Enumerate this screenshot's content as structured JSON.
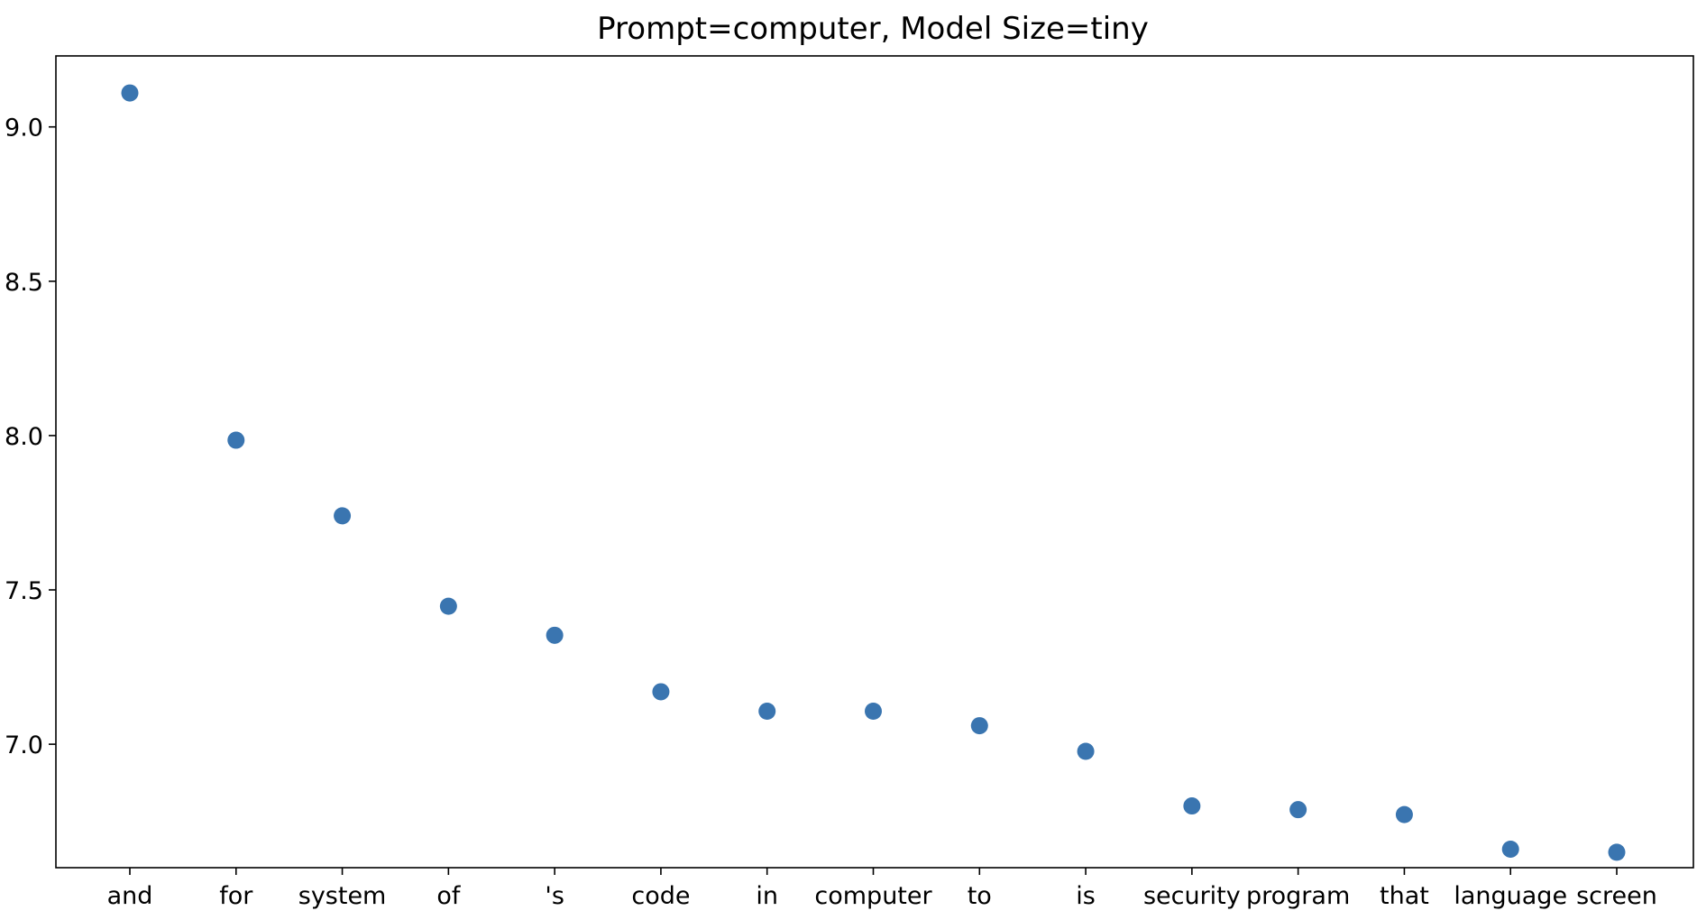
{
  "chart_data": {
    "type": "scatter",
    "title": "Prompt=computer, Model Size=tiny",
    "xlabel": "",
    "ylabel": "",
    "categories": [
      "and",
      "for",
      "system",
      "of",
      "'s",
      "code",
      "in",
      "computer",
      "to",
      "is",
      "security",
      "program",
      "that",
      "language",
      "screen"
    ],
    "values": [
      9.11,
      7.985,
      7.74,
      7.447,
      7.353,
      7.17,
      7.107,
      7.107,
      7.06,
      6.977,
      6.8,
      6.788,
      6.772,
      6.66,
      6.65
    ],
    "ylim": [
      6.6,
      9.23
    ],
    "yticks": [
      7.0,
      7.5,
      8.0,
      8.5,
      9.0
    ],
    "ytick_labels": [
      "7.0",
      "7.5",
      "8.0",
      "8.5",
      "9.0"
    ],
    "marker_color": "#3a75b0",
    "grid": false,
    "legend": "none"
  }
}
